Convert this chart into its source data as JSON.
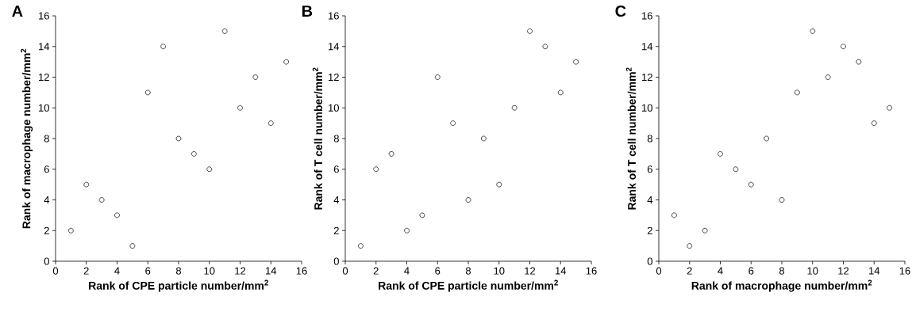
{
  "chart_data": [
    {
      "type": "scatter",
      "title": "A",
      "xlabel": "Rank of CPE particle number/mm$^{2}$",
      "ylabel": "Rank of macrophage number/mm$^{2}$",
      "x": [
        1,
        2,
        3,
        4,
        5,
        6,
        7,
        8,
        9,
        10,
        11,
        12,
        13,
        14,
        15
      ],
      "values": [
        2,
        5,
        4,
        3,
        1,
        11,
        14,
        8,
        7,
        6,
        15,
        10,
        12,
        9,
        13
      ],
      "color": "#000000",
      "marker": "circle",
      "xlim": [
        0,
        16
      ],
      "ylim": [
        0,
        16
      ],
      "xticks": [
        0,
        2,
        4,
        6,
        8,
        10,
        12,
        14,
        16
      ],
      "yticks": [
        0,
        2,
        4,
        6,
        8,
        10,
        12,
        14,
        16
      ]
    },
    {
      "type": "scatter",
      "title": "B",
      "xlabel": "Rank of CPE particle number/mm$^{2}$",
      "ylabel": "Rank of T cell number/mm$^{2}$",
      "x": [
        1,
        2,
        3,
        4,
        5,
        6,
        7,
        8,
        9,
        10,
        11,
        12,
        13,
        14,
        15
      ],
      "values": [
        1,
        6,
        7,
        2,
        3,
        12,
        9,
        4,
        8,
        5,
        10,
        15,
        14,
        11,
        13
      ],
      "color": "#000000",
      "marker": "circle",
      "xlim": [
        0,
        16
      ],
      "ylim": [
        0,
        16
      ],
      "xticks": [
        0,
        2,
        4,
        6,
        8,
        10,
        12,
        14,
        16
      ],
      "yticks": [
        0,
        2,
        4,
        6,
        8,
        10,
        12,
        14,
        16
      ]
    },
    {
      "type": "scatter",
      "title": "C",
      "xlabel": "Rank of macrophage number/mm$^{2}$",
      "ylabel": "Rank of T cell number/mm$^{2}$",
      "x": [
        1,
        2,
        3,
        4,
        5,
        6,
        7,
        8,
        9,
        10,
        11,
        12,
        13,
        14,
        15
      ],
      "values": [
        3,
        1,
        2,
        7,
        6,
        5,
        8,
        4,
        11,
        15,
        12,
        14,
        13,
        9,
        10
      ],
      "color": "#000000",
      "marker": "circle",
      "xlim": [
        0,
        16
      ],
      "ylim": [
        0,
        16
      ],
      "xticks": [
        0,
        2,
        4,
        6,
        8,
        10,
        12,
        14,
        16
      ],
      "yticks": [
        0,
        2,
        4,
        6,
        8,
        10,
        12,
        14,
        16
      ]
    }
  ]
}
